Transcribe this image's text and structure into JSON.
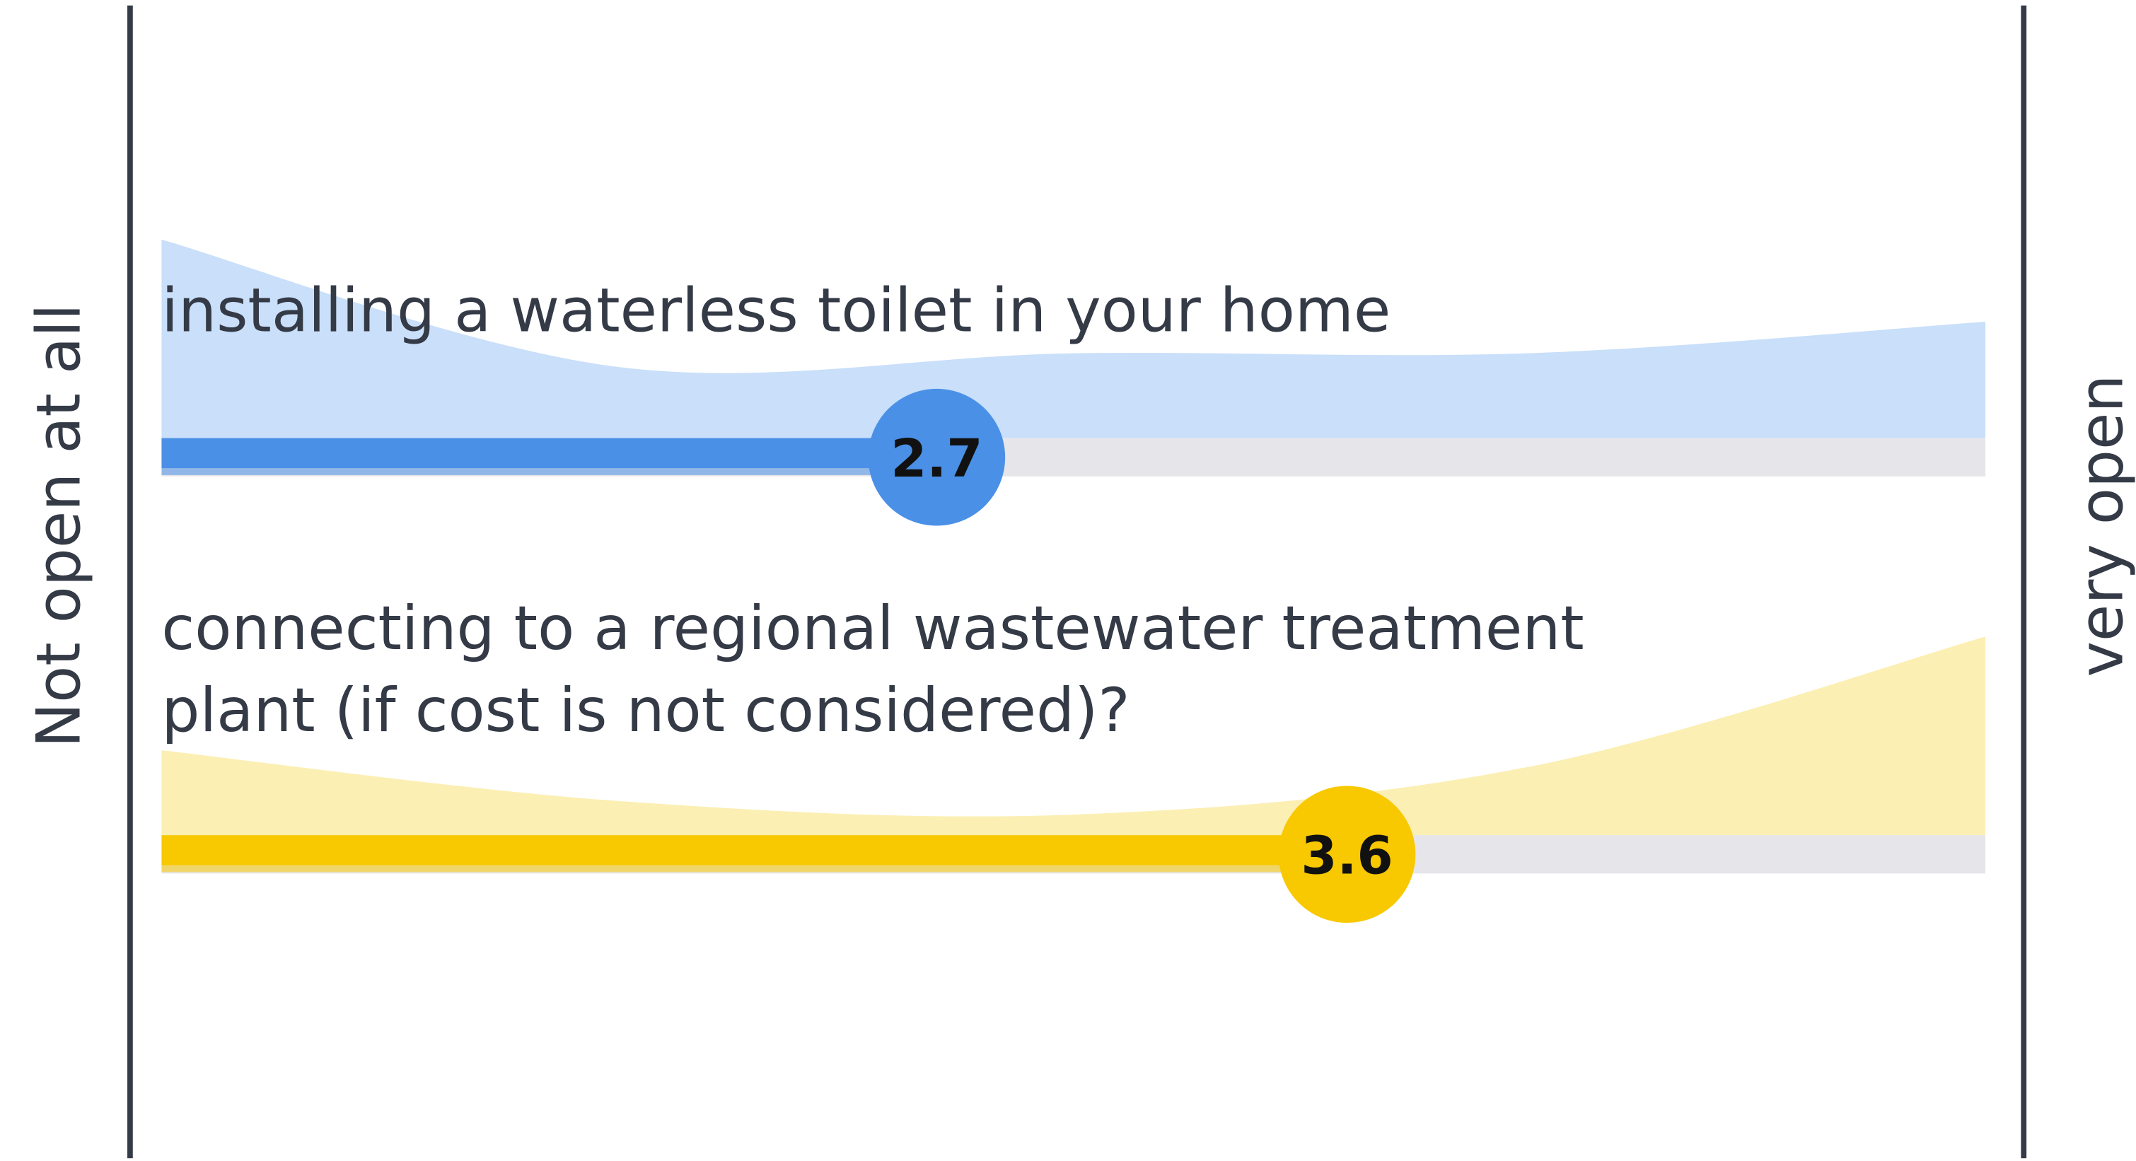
{
  "axis_labels": {
    "left": "Not open at all",
    "right": "very open"
  },
  "chart_data": {
    "type": "slider",
    "xlim": [
      1,
      5
    ],
    "density_x": [
      1,
      2,
      3,
      4,
      5
    ],
    "items": [
      {
        "label_lines": [
          "installing a waterless toilet in your home"
        ],
        "value": 2.7,
        "color": "#4a90e6",
        "area_color": "#c9dffa",
        "density": [
          145,
          52,
          62,
          62,
          85
        ]
      },
      {
        "label_lines": [
          "connecting to a regional wastewater treatment",
          "plant (if cost is not considered)?"
        ],
        "value": 3.6,
        "color": "#f8c800",
        "area_color": "#fbefb3",
        "density": [
          62,
          25,
          15,
          50,
          145
        ]
      }
    ]
  }
}
